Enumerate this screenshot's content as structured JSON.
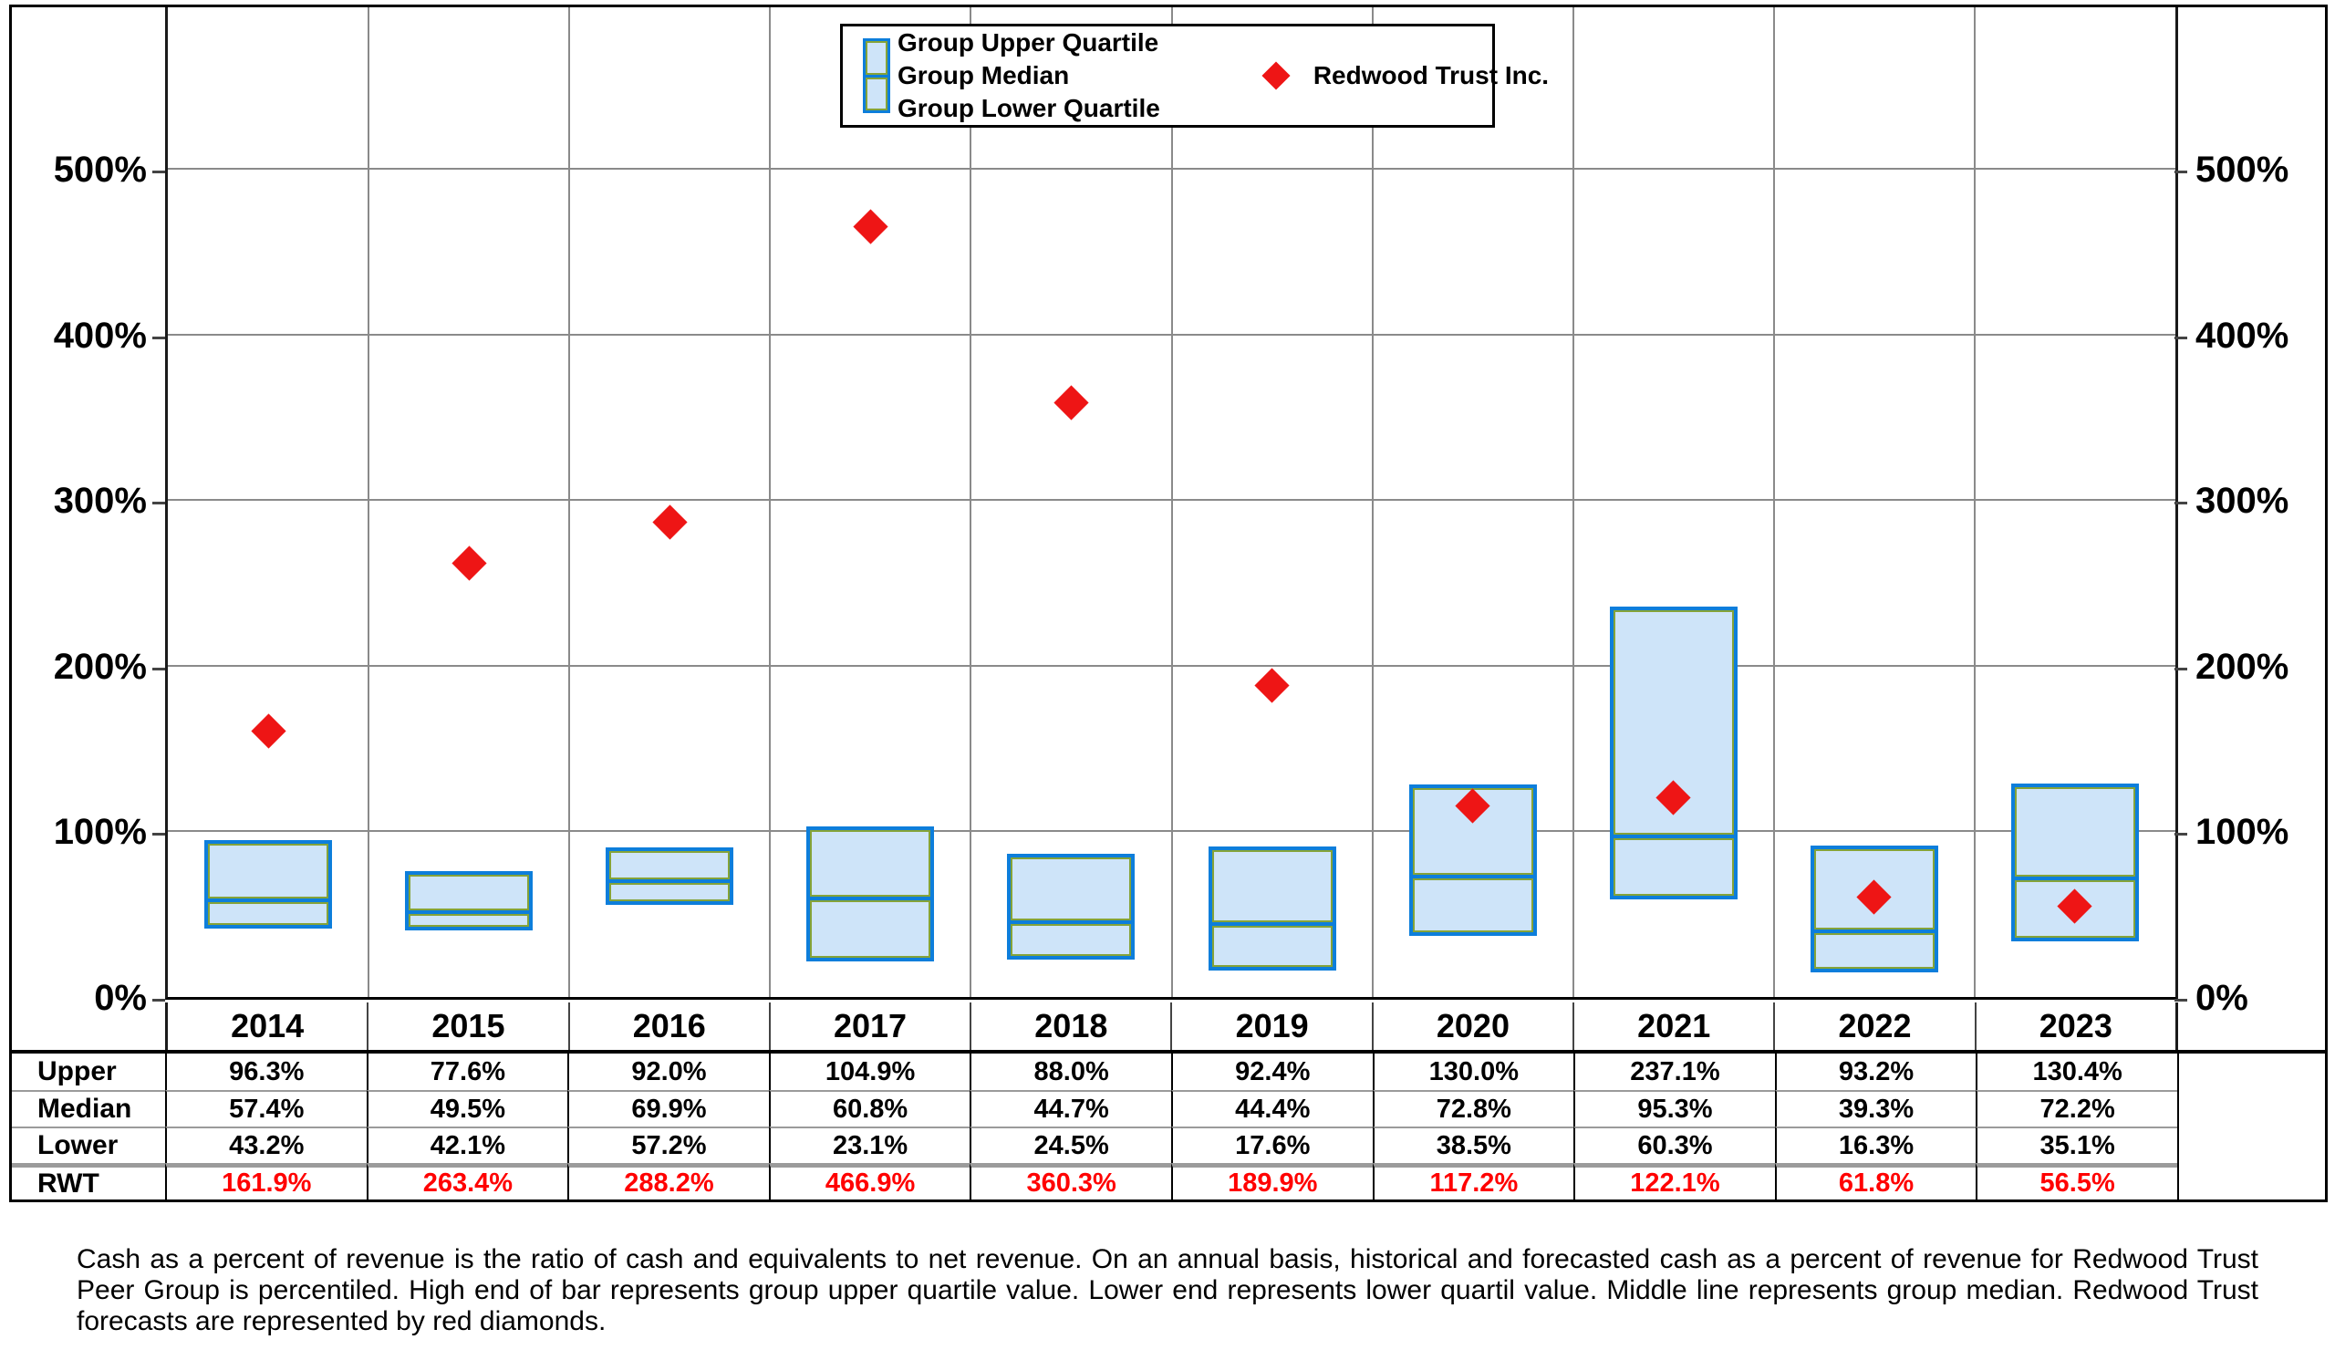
{
  "legend": {
    "group_items": [
      "Group Upper Quartile",
      "Group Median",
      "Group Lower Quartile"
    ],
    "company_label": "Redwood Trust Inc."
  },
  "chart_data": {
    "type": "bar",
    "subtype": "floating-quartile-boxes-with-scatter-points",
    "title": "",
    "categories": [
      "2014",
      "2015",
      "2016",
      "2017",
      "2018",
      "2019",
      "2020",
      "2021",
      "2022",
      "2023"
    ],
    "series": [
      {
        "name": "Group Upper Quartile",
        "values": [
          96.3,
          77.6,
          92.0,
          104.9,
          88.0,
          92.4,
          130.0,
          237.1,
          93.2,
          130.4
        ]
      },
      {
        "name": "Group Median",
        "values": [
          57.4,
          49.5,
          69.9,
          60.8,
          44.7,
          44.4,
          72.8,
          95.3,
          39.3,
          72.2
        ]
      },
      {
        "name": "Group Lower Quartile",
        "values": [
          43.2,
          42.1,
          57.2,
          23.1,
          24.5,
          17.6,
          38.5,
          60.3,
          16.3,
          35.1
        ]
      },
      {
        "name": "Redwood Trust Inc.",
        "marker": "red-diamond",
        "values": [
          161.9,
          263.4,
          288.2,
          466.9,
          360.3,
          189.9,
          117.2,
          122.1,
          61.8,
          56.5
        ]
      }
    ],
    "y_ticks": [
      "0%",
      "100%",
      "200%",
      "300%",
      "400%",
      "500%"
    ],
    "y_tick_values": [
      0,
      100,
      200,
      300,
      400,
      500
    ],
    "ylim": [
      0,
      598
    ],
    "y_axis_sides": "both",
    "grid": true,
    "legend_position": "top-center"
  },
  "table": {
    "rows": [
      {
        "label": "Upper",
        "values": [
          "96.3%",
          "77.6%",
          "92.0%",
          "104.9%",
          "88.0%",
          "92.4%",
          "130.0%",
          "237.1%",
          "93.2%",
          "130.4%"
        ]
      },
      {
        "label": "Median",
        "values": [
          "57.4%",
          "49.5%",
          "69.9%",
          "60.8%",
          "44.7%",
          "44.4%",
          "72.8%",
          "95.3%",
          "39.3%",
          "72.2%"
        ]
      },
      {
        "label": "Lower",
        "values": [
          "43.2%",
          "42.1%",
          "57.2%",
          "23.1%",
          "24.5%",
          "17.6%",
          "38.5%",
          "60.3%",
          "16.3%",
          "35.1%"
        ]
      },
      {
        "label": "RWT",
        "values": [
          "161.9%",
          "263.4%",
          "288.2%",
          "466.9%",
          "360.3%",
          "189.9%",
          "117.2%",
          "122.1%",
          "61.8%",
          "56.5%"
        ],
        "highlight": "red"
      }
    ]
  },
  "footer": {
    "text": "Cash as a percent of revenue is the ratio of cash and equivalents to net revenue.  On an annual basis, historical and forecasted cash as a percent of revenue for Redwood Trust Peer Group is percentiled.  High end of bar represents group upper quartile value.  Lower end represents lower quartil value.  Middle line represents group median.  Redwood Trust forecasts are represented by red diamonds."
  },
  "colors": {
    "bar_fill": "#cee4f9",
    "bar_border": "#0d7edb",
    "bar_inner_line": "#85a338",
    "diamond_red": "#ee1515",
    "rwt_value_red": "#ff0000",
    "gridline": "#8a8a8a"
  }
}
